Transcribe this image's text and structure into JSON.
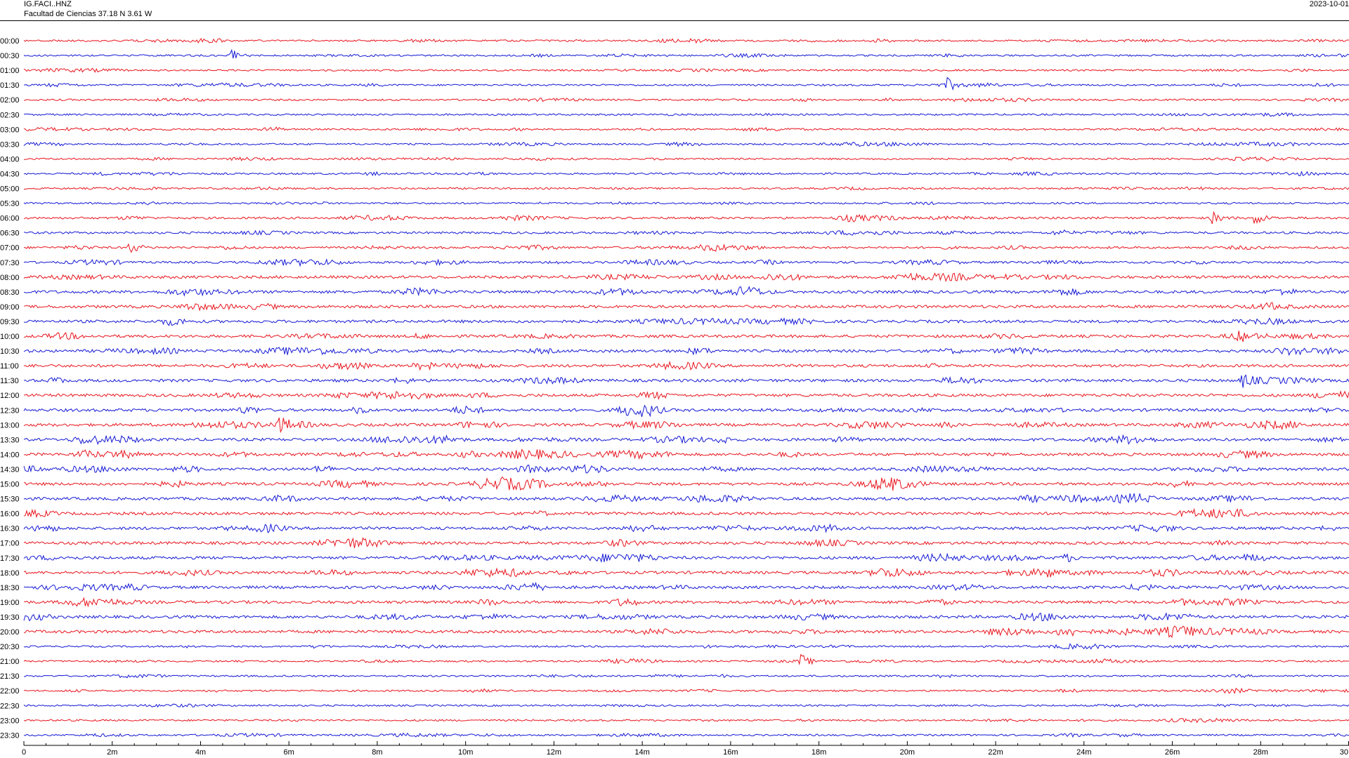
{
  "header": {
    "station": "IG.FACI..HNZ",
    "location": "Facultad de Ciencias  37.18 N 3.61 W",
    "date": "2023-10-01"
  },
  "chart_data": {
    "type": "line",
    "title": "",
    "xlabel": "",
    "ylabel": "",
    "xlim": [
      0,
      30
    ],
    "x_ticks": [
      "0",
      "2m",
      "4m",
      "6m",
      "8m",
      "10m",
      "12m",
      "14m",
      "16m",
      "18m",
      "20m",
      "22m",
      "24m",
      "26m",
      "28m",
      "30"
    ],
    "row_labels": [
      "00:00",
      "00:30",
      "01:00",
      "01:30",
      "02:00",
      "02:30",
      "03:00",
      "03:30",
      "04:00",
      "04:30",
      "05:00",
      "05:30",
      "06:00",
      "06:30",
      "07:00",
      "07:30",
      "08:00",
      "08:30",
      "09:00",
      "09:30",
      "10:00",
      "10:30",
      "11:00",
      "11:30",
      "12:00",
      "12:30",
      "13:00",
      "13:30",
      "14:00",
      "14:30",
      "15:00",
      "15:30",
      "16:00",
      "16:30",
      "17:00",
      "17:30",
      "18:00",
      "18:30",
      "19:00",
      "19:30",
      "20:00",
      "20:30",
      "21:00",
      "21:30",
      "22:00",
      "22:30",
      "23:00",
      "23:30"
    ],
    "trace_colors": [
      "#e8141c",
      "#1418d4"
    ],
    "events": [
      {
        "row": "00:30",
        "minute": 4.7
      },
      {
        "row": "01:30",
        "minute": 20.9
      },
      {
        "row": "06:00",
        "minute": 26.9
      },
      {
        "row": "06:00",
        "minute": 27.9
      },
      {
        "row": "07:00",
        "minute": 2.4
      },
      {
        "row": "11:30",
        "minute": 27.6
      },
      {
        "row": "13:00",
        "minute": 5.8
      },
      {
        "row": "21:00",
        "minute": 17.6
      }
    ]
  }
}
